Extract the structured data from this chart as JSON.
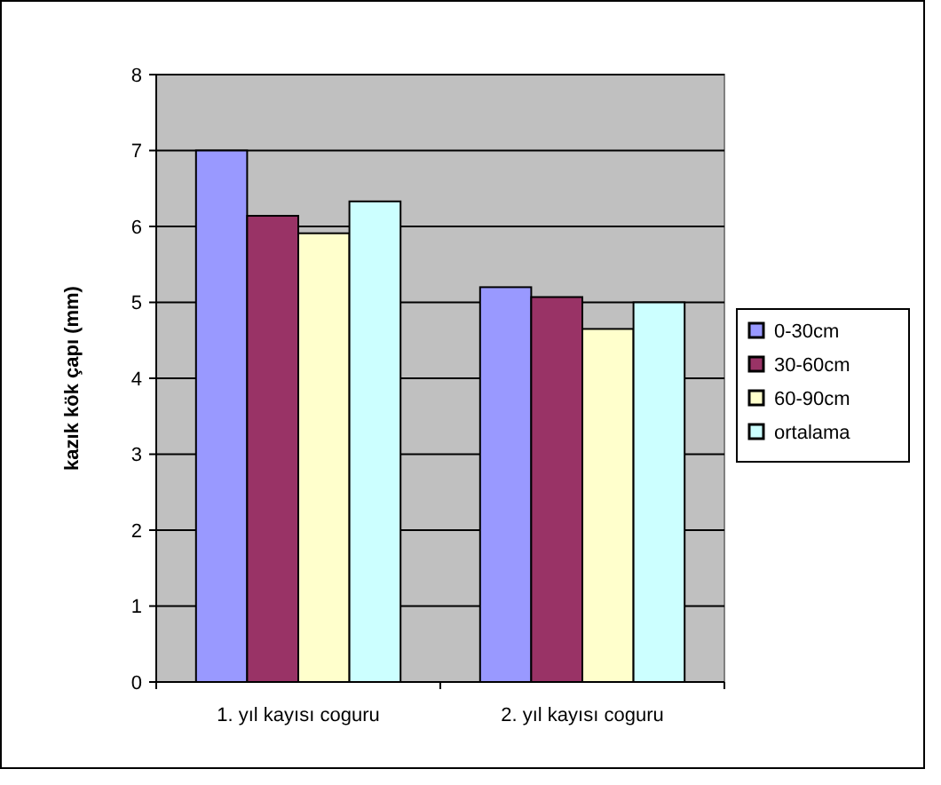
{
  "chart_data": {
    "type": "bar",
    "ylabel": "kazık kök çapı (mm)",
    "categories": [
      "1. yıl kayısı coguru",
      "2. yıl kayısı coguru"
    ],
    "series": [
      {
        "name": "0-30cm",
        "color": "#9999ff",
        "values": [
          7.0,
          5.2
        ]
      },
      {
        "name": "30-60cm",
        "color": "#993366",
        "values": [
          6.14,
          5.07
        ]
      },
      {
        "name": "60-90cm",
        "color": "#ffffcc",
        "values": [
          5.91,
          4.65
        ]
      },
      {
        "name": "ortalama",
        "color": "#ccffff",
        "values": [
          6.33,
          5.0
        ]
      }
    ],
    "ylim": [
      0,
      8
    ],
    "yticks": [
      0,
      1,
      2,
      3,
      4,
      5,
      6,
      7,
      8
    ],
    "grid": "y",
    "legend": "right"
  }
}
